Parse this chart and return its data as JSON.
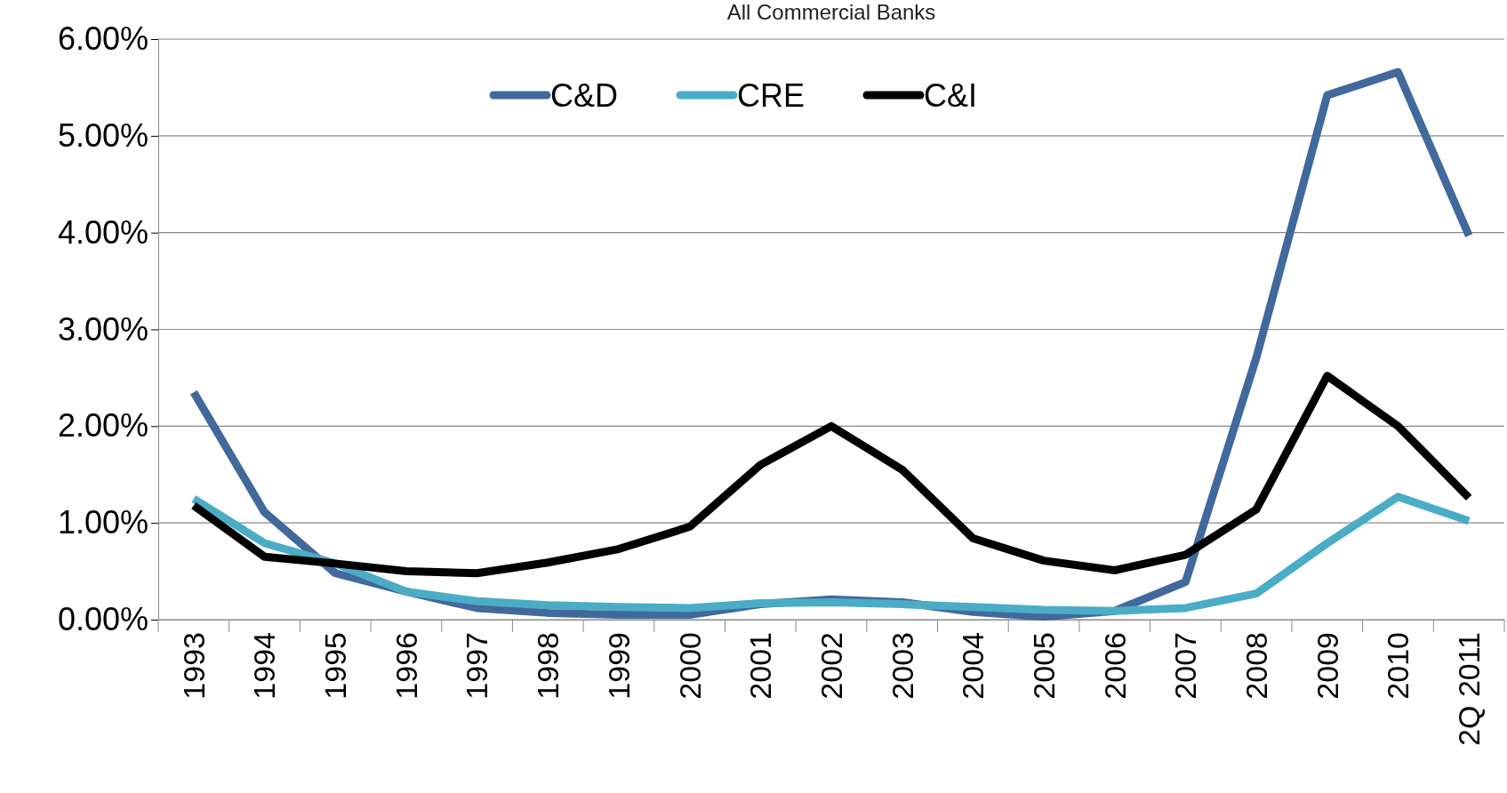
{
  "chart_data": {
    "type": "line",
    "title": "All Commercial Banks",
    "categories": [
      "1993",
      "1994",
      "1995",
      "1996",
      "1997",
      "1998",
      "1999",
      "2000",
      "2001",
      "2002",
      "2003",
      "2004",
      "2005",
      "2006",
      "2007",
      "2008",
      "2009",
      "2010",
      "2Q 2011"
    ],
    "series": [
      {
        "name": "C&D",
        "color": "#41699c",
        "values": [
          2.35,
          1.11,
          0.48,
          0.29,
          0.12,
          0.07,
          0.05,
          0.05,
          0.16,
          0.21,
          0.18,
          0.08,
          0.03,
          0.09,
          0.39,
          2.71,
          5.42,
          5.66,
          3.97
        ]
      },
      {
        "name": "CRE",
        "color": "#4bacc6",
        "values": [
          1.25,
          0.79,
          0.58,
          0.29,
          0.19,
          0.15,
          0.13,
          0.12,
          0.17,
          0.18,
          0.16,
          0.13,
          0.1,
          0.09,
          0.12,
          0.27,
          0.79,
          1.27,
          1.02
        ]
      },
      {
        "name": "C&I",
        "color": "#000000",
        "values": [
          1.18,
          0.65,
          0.58,
          0.5,
          0.48,
          0.59,
          0.73,
          0.96,
          1.6,
          2.0,
          1.55,
          0.84,
          0.61,
          0.51,
          0.67,
          1.14,
          2.52,
          2.0,
          1.26
        ]
      }
    ],
    "ylim": [
      0,
      6
    ],
    "yticks": [
      {
        "value": 0,
        "label": "0.00%"
      },
      {
        "value": 1,
        "label": "1.00%"
      },
      {
        "value": 2,
        "label": "2.00%"
      },
      {
        "value": 3,
        "label": "3.00%"
      },
      {
        "value": 4,
        "label": "4.00%"
      },
      {
        "value": 5,
        "label": "5.00%"
      },
      {
        "value": 6,
        "label": "6.00%"
      }
    ],
    "grid": "y",
    "legend": "top",
    "marker": "none",
    "line_style": "solid"
  }
}
